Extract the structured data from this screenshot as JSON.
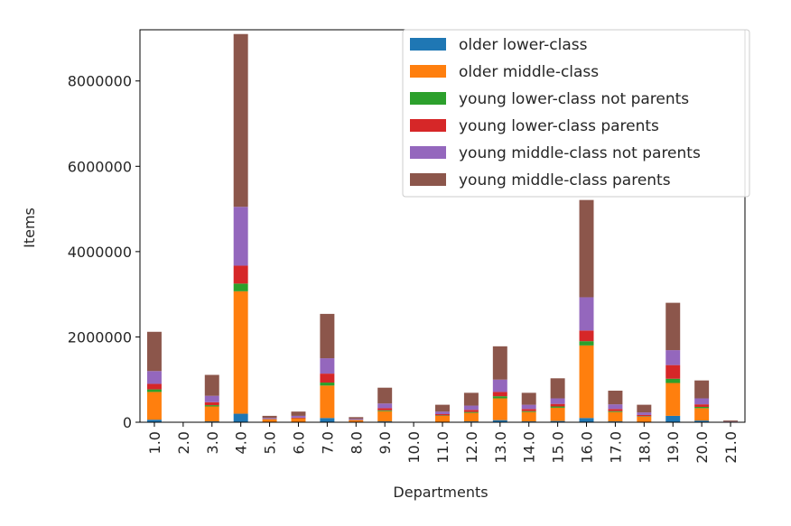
{
  "chart_data": {
    "type": "bar",
    "stacked": true,
    "xlabel": "Departments",
    "ylabel": "Items",
    "ylim": [
      0,
      9200000
    ],
    "yticks": [
      0,
      2000000,
      4000000,
      6000000,
      8000000
    ],
    "ytick_labels": [
      "0",
      "2000000",
      "4000000",
      "6000000",
      "8000000"
    ],
    "legend_position": "top-right",
    "categories": [
      "1.0",
      "2.0",
      "3.0",
      "4.0",
      "5.0",
      "6.0",
      "7.0",
      "8.0",
      "9.0",
      "10.0",
      "11.0",
      "12.0",
      "13.0",
      "14.0",
      "15.0",
      "16.0",
      "17.0",
      "18.0",
      "19.0",
      "20.0",
      "21.0"
    ],
    "series": [
      {
        "name": "older lower-class",
        "color": "#1f77b4",
        "values": [
          60000,
          0,
          20000,
          200000,
          5000,
          5000,
          100000,
          5000,
          20000,
          0,
          10000,
          20000,
          50000,
          20000,
          30000,
          100000,
          20000,
          10000,
          150000,
          40000,
          2000
        ]
      },
      {
        "name": "older middle-class",
        "color": "#ff7f0e",
        "values": [
          650000,
          0,
          350000,
          2870000,
          60000,
          80000,
          760000,
          40000,
          240000,
          0,
          140000,
          200000,
          510000,
          220000,
          310000,
          1700000,
          220000,
          120000,
          770000,
          290000,
          10000
        ]
      },
      {
        "name": "young lower-class not parents",
        "color": "#2ca02c",
        "values": [
          60000,
          0,
          30000,
          180000,
          5000,
          5000,
          70000,
          5000,
          20000,
          0,
          10000,
          20000,
          50000,
          20000,
          30000,
          100000,
          20000,
          10000,
          100000,
          30000,
          1000
        ]
      },
      {
        "name": "young lower-class parents",
        "color": "#d62728",
        "values": [
          130000,
          0,
          70000,
          420000,
          10000,
          20000,
          210000,
          10000,
          50000,
          0,
          30000,
          50000,
          100000,
          50000,
          60000,
          250000,
          50000,
          30000,
          320000,
          60000,
          2000
        ]
      },
      {
        "name": "young middle-class not parents",
        "color": "#9467bd",
        "values": [
          300000,
          0,
          150000,
          1380000,
          20000,
          40000,
          360000,
          20000,
          110000,
          0,
          60000,
          100000,
          290000,
          100000,
          130000,
          780000,
          110000,
          60000,
          350000,
          140000,
          5000
        ]
      },
      {
        "name": "young middle-class parents",
        "color": "#8c564b",
        "values": [
          920000,
          0,
          490000,
          4050000,
          50000,
          100000,
          1040000,
          40000,
          370000,
          0,
          160000,
          300000,
          780000,
          280000,
          470000,
          2280000,
          320000,
          180000,
          1110000,
          420000,
          20000
        ]
      }
    ]
  }
}
